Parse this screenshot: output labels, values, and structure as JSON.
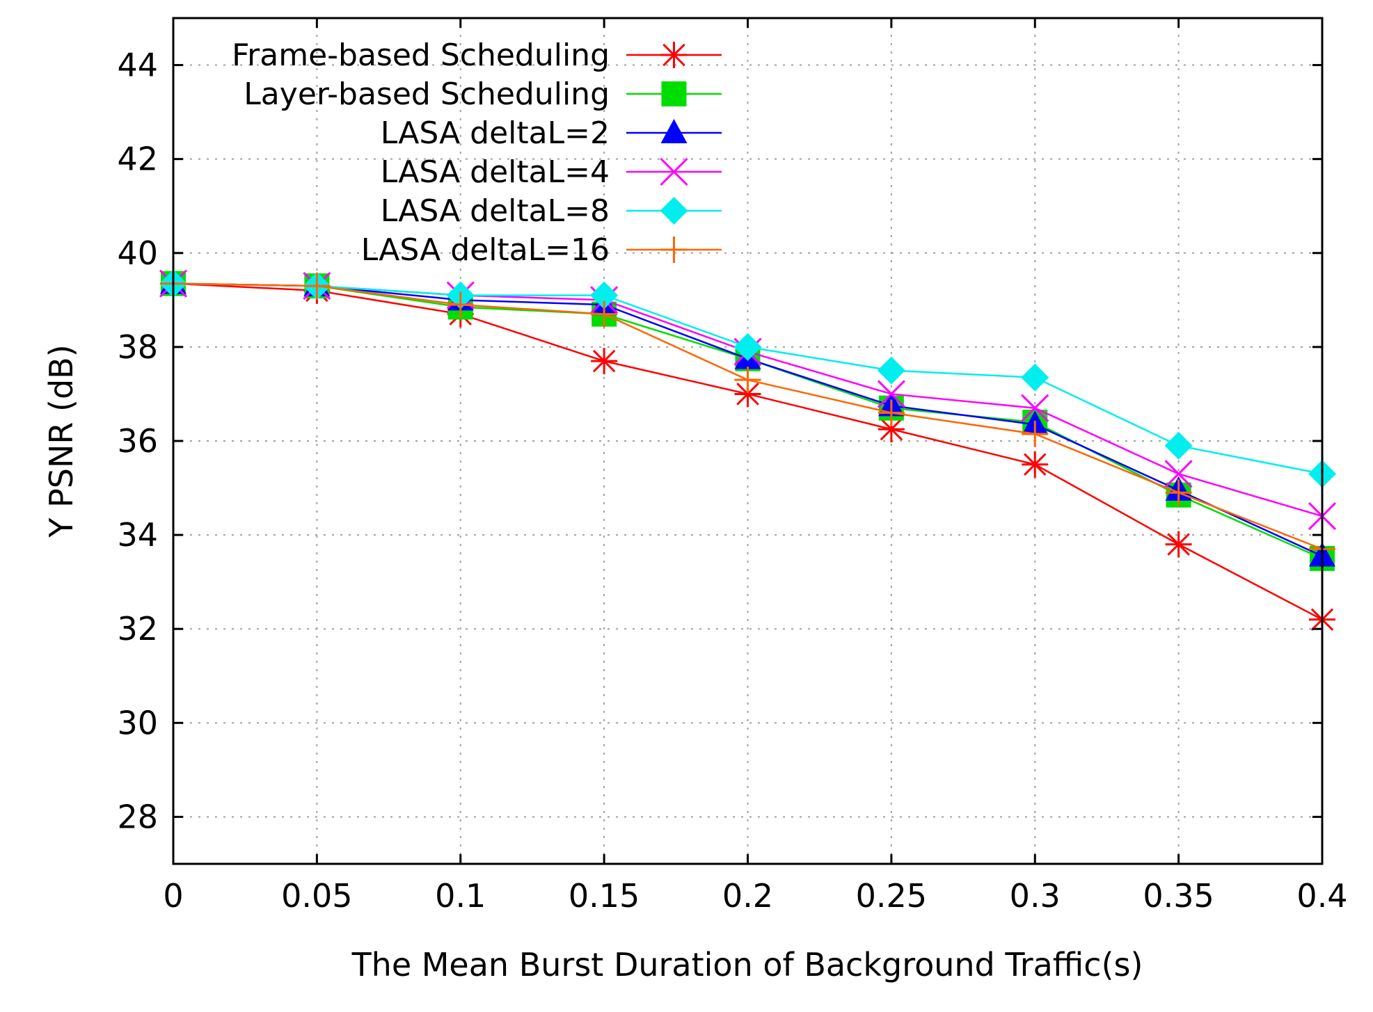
{
  "chart_data": {
    "type": "line",
    "title": "",
    "xlabel": "The Mean Burst Duration of Background Traffic(s)",
    "ylabel": "Y PSNR (dB)",
    "xlim": [
      0,
      0.4
    ],
    "ylim": [
      27,
      45
    ],
    "grid": true,
    "legend_position": "top-left",
    "x": [
      0,
      0.05,
      0.1,
      0.15,
      0.2,
      0.25,
      0.3,
      0.35,
      0.4
    ],
    "x_tick_labels": [
      "0",
      "0.05",
      "0.1",
      "0.15",
      "0.2",
      "0.25",
      "0.3",
      "0.35",
      "0.4"
    ],
    "y_ticks": [
      28,
      30,
      32,
      34,
      36,
      38,
      40,
      42,
      44
    ],
    "y_tick_labels": [
      "28",
      "30",
      "32",
      "34",
      "36",
      "38",
      "40",
      "42",
      "44"
    ],
    "series": [
      {
        "name": "Frame-based Scheduling",
        "color": "#ff0000",
        "marker": "asterisk",
        "values": [
          39.35,
          39.2,
          38.7,
          37.7,
          37.0,
          36.25,
          35.5,
          33.8,
          32.2
        ]
      },
      {
        "name": "Layer-based Scheduling",
        "color": "#00dd00",
        "marker": "square",
        "values": [
          39.35,
          39.3,
          38.85,
          38.7,
          37.75,
          36.7,
          36.4,
          34.85,
          33.5
        ]
      },
      {
        "name": "LASA deltaL=2",
        "color": "#0000ff",
        "marker": "triangle",
        "values": [
          39.35,
          39.3,
          39.0,
          38.9,
          37.75,
          36.75,
          36.35,
          34.95,
          33.55
        ]
      },
      {
        "name": "LASA deltaL=4",
        "color": "#ff00ff",
        "marker": "cross",
        "values": [
          39.35,
          39.3,
          39.1,
          39.0,
          37.9,
          37.0,
          36.7,
          35.3,
          34.4
        ]
      },
      {
        "name": "LASA deltaL=8",
        "color": "#00eeee",
        "marker": "diamond",
        "values": [
          39.35,
          39.3,
          39.1,
          39.1,
          38.0,
          37.5,
          37.35,
          35.9,
          35.3
        ]
      },
      {
        "name": "LASA deltaL=16",
        "color": "#ff6600",
        "marker": "plus",
        "values": [
          39.35,
          39.3,
          38.9,
          38.7,
          37.3,
          36.6,
          36.15,
          34.9,
          33.7
        ]
      }
    ]
  }
}
